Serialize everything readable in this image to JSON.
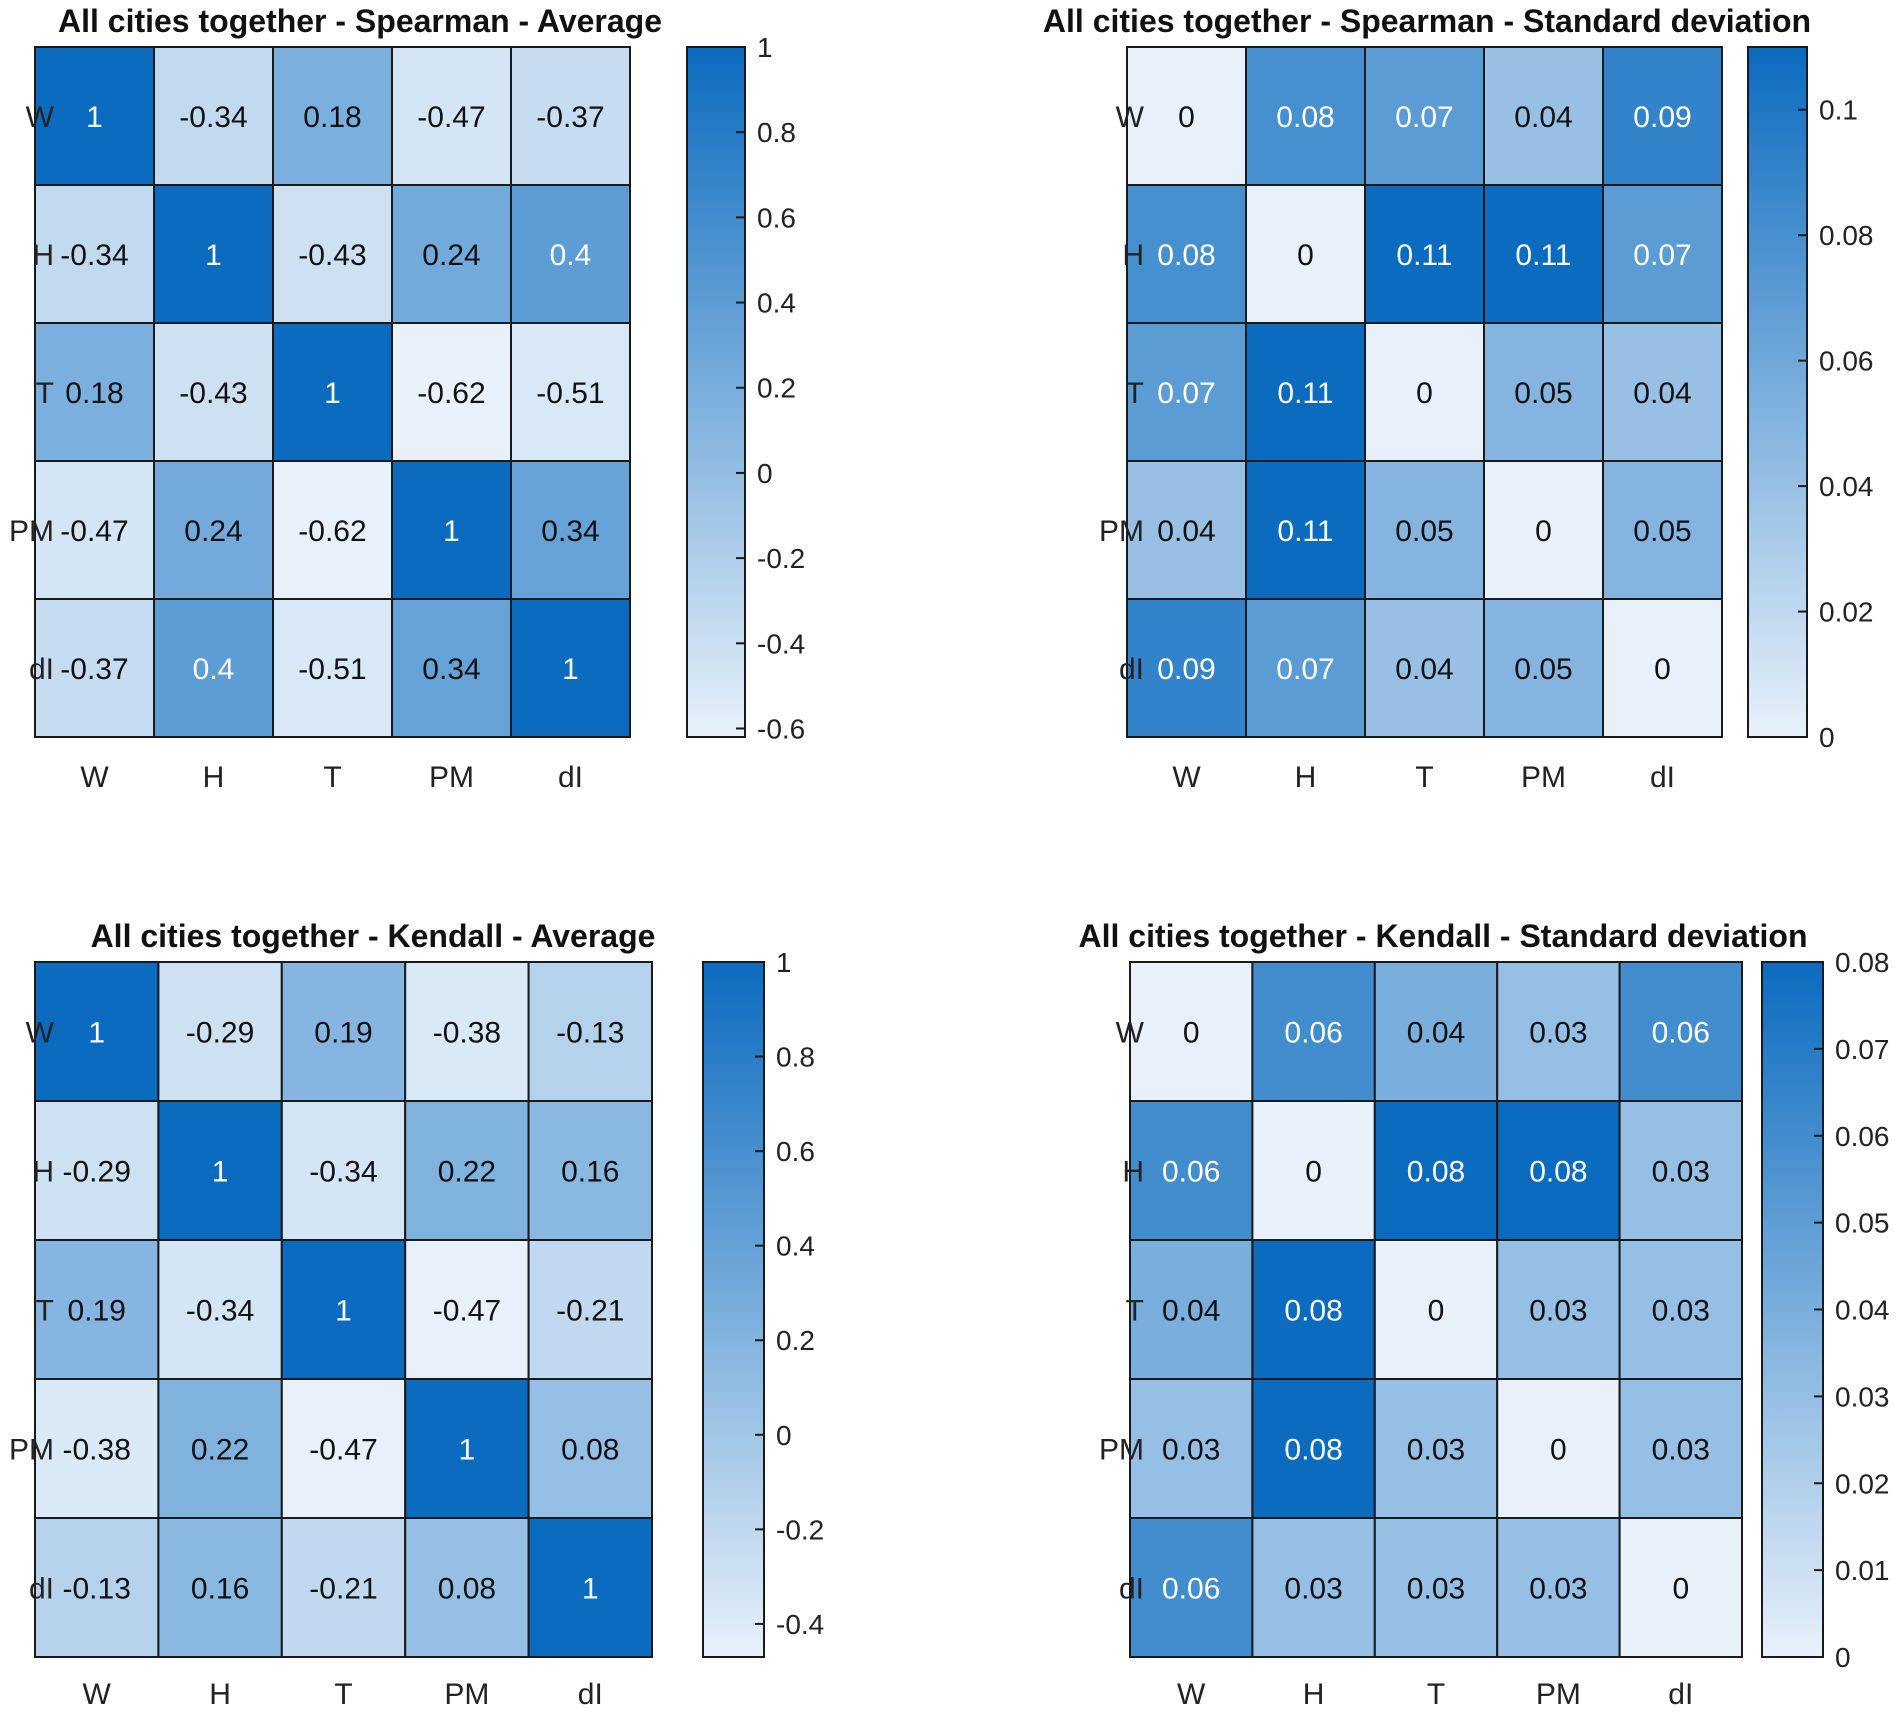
{
  "chart_data": [
    {
      "type": "heatmap",
      "title": "All cities together - Spearman - Average",
      "x_labels": [
        "W",
        "H",
        "T",
        "PM",
        "dI"
      ],
      "y_labels": [
        "W",
        "H",
        "T",
        "PM",
        "dI"
      ],
      "values": [
        [
          1,
          -0.34,
          0.18,
          -0.47,
          -0.37
        ],
        [
          -0.34,
          1,
          -0.43,
          0.24,
          0.4
        ],
        [
          0.18,
          -0.43,
          1,
          -0.62,
          -0.51
        ],
        [
          -0.47,
          0.24,
          -0.62,
          1,
          0.34
        ],
        [
          -0.37,
          0.4,
          -0.51,
          0.34,
          1
        ]
      ],
      "cell_labels": [
        [
          "1",
          "-0.34",
          "0.18",
          "-0.47",
          "-0.37"
        ],
        [
          "-0.34",
          "1",
          "-0.43",
          "0.24",
          "0.4"
        ],
        [
          "0.18",
          "-0.43",
          "1",
          "-0.62",
          "-0.51"
        ],
        [
          "-0.47",
          "0.24",
          "-0.62",
          "1",
          "0.34"
        ],
        [
          "-0.37",
          "0.4",
          "-0.51",
          "0.34",
          "1"
        ]
      ],
      "colorbar": {
        "range": [
          -0.62,
          1
        ],
        "ticks": [
          -0.6,
          -0.4,
          -0.2,
          0,
          0.2,
          0.4,
          0.6,
          0.8,
          1
        ],
        "tick_labels": [
          "-0.6",
          "-0.4",
          "-0.2",
          "0",
          "0.2",
          "0.4",
          "0.6",
          "0.8",
          "1"
        ]
      }
    },
    {
      "type": "heatmap",
      "title": "All cities together - Spearman - Standard deviation",
      "x_labels": [
        "W",
        "H",
        "T",
        "PM",
        "dI"
      ],
      "y_labels": [
        "W",
        "H",
        "T",
        "PM",
        "dI"
      ],
      "values": [
        [
          0,
          0.08,
          0.07,
          0.04,
          0.09
        ],
        [
          0.08,
          0,
          0.11,
          0.11,
          0.07
        ],
        [
          0.07,
          0.11,
          0,
          0.05,
          0.04
        ],
        [
          0.04,
          0.11,
          0.05,
          0,
          0.05
        ],
        [
          0.09,
          0.07,
          0.04,
          0.05,
          0
        ]
      ],
      "cell_labels": [
        [
          "0",
          "0.08",
          "0.07",
          "0.04",
          "0.09"
        ],
        [
          "0.08",
          "0",
          "0.11",
          "0.11",
          "0.07"
        ],
        [
          "0.07",
          "0.11",
          "0",
          "0.05",
          "0.04"
        ],
        [
          "0.04",
          "0.11",
          "0.05",
          "0",
          "0.05"
        ],
        [
          "0.09",
          "0.07",
          "0.04",
          "0.05",
          "0"
        ]
      ],
      "colorbar": {
        "range": [
          0,
          0.11
        ],
        "ticks": [
          0,
          0.02,
          0.04,
          0.06,
          0.08,
          0.1
        ],
        "tick_labels": [
          "0",
          "0.02",
          "0.04",
          "0.06",
          "0.08",
          "0.1"
        ]
      }
    },
    {
      "type": "heatmap",
      "title": "All cities together - Kendall - Average",
      "x_labels": [
        "W",
        "H",
        "T",
        "PM",
        "dI"
      ],
      "y_labels": [
        "W",
        "H",
        "T",
        "PM",
        "dI"
      ],
      "values": [
        [
          1,
          -0.29,
          0.19,
          -0.38,
          -0.13
        ],
        [
          -0.29,
          1,
          -0.34,
          0.22,
          0.16
        ],
        [
          0.19,
          -0.34,
          1,
          -0.47,
          -0.21
        ],
        [
          -0.38,
          0.22,
          -0.47,
          1,
          0.08
        ],
        [
          -0.13,
          0.16,
          -0.21,
          0.08,
          1
        ]
      ],
      "cell_labels": [
        [
          "1",
          "-0.29",
          "0.19",
          "-0.38",
          "-0.13"
        ],
        [
          "-0.29",
          "1",
          "-0.34",
          "0.22",
          "0.16"
        ],
        [
          "0.19",
          "-0.34",
          "1",
          "-0.47",
          "-0.21"
        ],
        [
          "-0.38",
          "0.22",
          "-0.47",
          "1",
          "0.08"
        ],
        [
          "-0.13",
          "0.16",
          "-0.21",
          "0.08",
          "1"
        ]
      ],
      "colorbar": {
        "range": [
          -0.47,
          1
        ],
        "ticks": [
          -0.4,
          -0.2,
          0,
          0.2,
          0.4,
          0.6,
          0.8,
          1
        ],
        "tick_labels": [
          "-0.4",
          "-0.2",
          "0",
          "0.2",
          "0.4",
          "0.6",
          "0.8",
          "1"
        ]
      }
    },
    {
      "type": "heatmap",
      "title": "All cities together - Kendall - Standard deviation",
      "x_labels": [
        "W",
        "H",
        "T",
        "PM",
        "dI"
      ],
      "y_labels": [
        "W",
        "H",
        "T",
        "PM",
        "dI"
      ],
      "values": [
        [
          0,
          0.06,
          0.04,
          0.03,
          0.06
        ],
        [
          0.06,
          0,
          0.08,
          0.08,
          0.03
        ],
        [
          0.04,
          0.08,
          0,
          0.03,
          0.03
        ],
        [
          0.03,
          0.08,
          0.03,
          0,
          0.03
        ],
        [
          0.06,
          0.03,
          0.03,
          0.03,
          0
        ]
      ],
      "cell_labels": [
        [
          "0",
          "0.06",
          "0.04",
          "0.03",
          "0.06"
        ],
        [
          "0.06",
          "0",
          "0.08",
          "0.08",
          "0.03"
        ],
        [
          "0.04",
          "0.08",
          "0",
          "0.03",
          "0.03"
        ],
        [
          "0.03",
          "0.08",
          "0.03",
          "0",
          "0.03"
        ],
        [
          "0.06",
          "0.03",
          "0.03",
          "0.03",
          "0"
        ]
      ],
      "colorbar": {
        "range": [
          0,
          0.08
        ],
        "ticks": [
          0,
          0.01,
          0.02,
          0.03,
          0.04,
          0.05,
          0.06,
          0.07,
          0.08
        ],
        "tick_labels": [
          "0",
          "0.01",
          "0.02",
          "0.03",
          "0.04",
          "0.05",
          "0.06",
          "0.07",
          "0.08"
        ]
      }
    }
  ],
  "colors": {
    "low": "#e8f1fa",
    "high": "#0b6bbf",
    "text_dark": "#111111",
    "text_light": "#ffffff"
  }
}
